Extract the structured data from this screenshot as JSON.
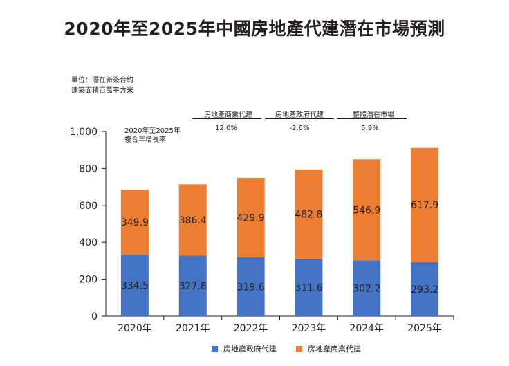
{
  "title": "2020年至2025年中國房地產代建潛在市場預測",
  "unit_line1": "單位：潛在新簽合約",
  "unit_line2": "建築面積百萬平方米",
  "cagr": {
    "label_line1": "2020年至2025年",
    "label_line2": "複合年增長率",
    "items": [
      {
        "name": "房地產商業代建",
        "value": "12.0%"
      },
      {
        "name": "房地產政府代建",
        "value": "-2.6%"
      },
      {
        "name": "整體潛在市場",
        "value": "5.9%"
      }
    ]
  },
  "legend": {
    "government": "房地產政府代建",
    "commercial": "房地產商業代建"
  },
  "colors": {
    "government": "#4472c4",
    "commercial": "#ed7d31"
  },
  "chart_data": {
    "type": "bar",
    "stacked": true,
    "categories": [
      "2020年",
      "2021年",
      "2022年",
      "2023年",
      "2024年",
      "2025年"
    ],
    "series": [
      {
        "name": "房地產政府代建",
        "values": [
          334.5,
          327.8,
          319.6,
          311.6,
          302.2,
          293.2
        ]
      },
      {
        "name": "房地產商業代建",
        "values": [
          349.9,
          386.4,
          429.9,
          482.8,
          546.9,
          617.9
        ]
      }
    ],
    "value_labels": [
      [
        "334.5",
        "327.8",
        "319.6",
        "311.6",
        "302.2",
        "293.2"
      ],
      [
        "349.9",
        "386.4",
        "429.9",
        "482.8",
        "546.9",
        "617.9"
      ]
    ],
    "yticks": [
      "0",
      "200",
      "400",
      "600",
      "800",
      "1,000"
    ],
    "ylim": [
      0,
      1000
    ],
    "grid": false
  }
}
